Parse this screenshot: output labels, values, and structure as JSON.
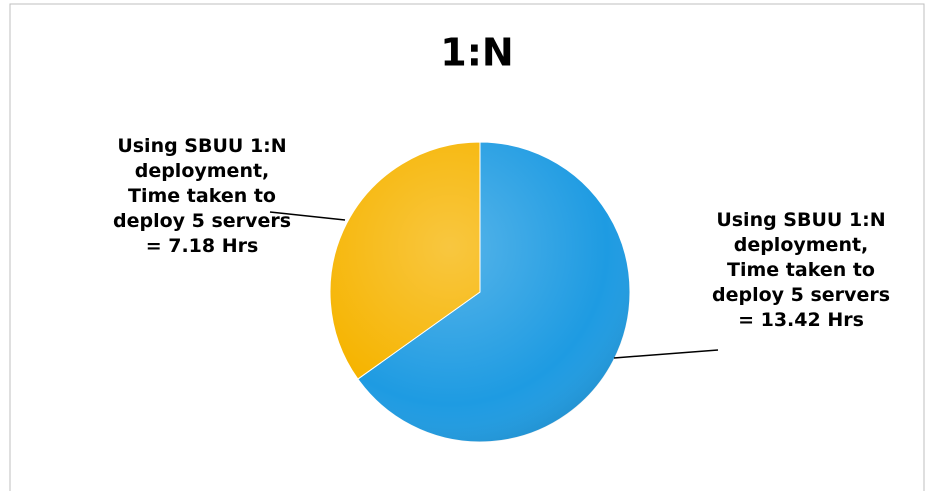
{
  "chart_data": {
    "type": "pie",
    "title": "1:N",
    "values": [
      13.42,
      7.18
    ],
    "value_labels": [
      "Using SBUU 1:N deployment, Time taken to deploy 5 servers = 13.42 Hrs",
      "Using SBUU 1:N deployment, Time taken to deploy 5 servers = 7.18 Hrs"
    ],
    "colors": [
      "#1e9be2",
      "#f6b400"
    ]
  }
}
